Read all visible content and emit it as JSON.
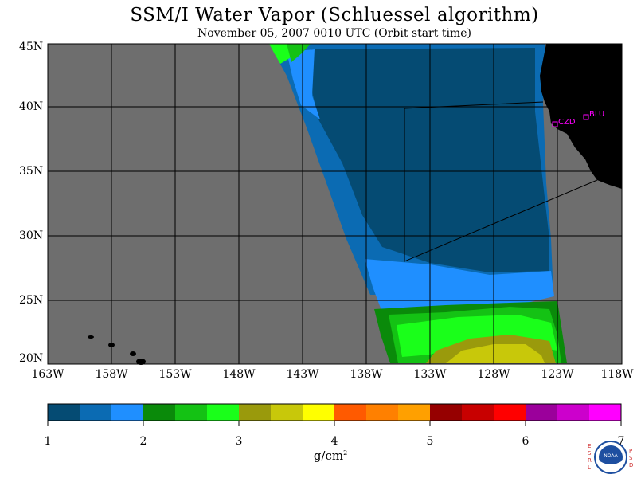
{
  "title": "SSM/I Water Vapor (Schluessel algorithm)",
  "subtitle": "November 05, 2007  0010 UTC  (Orbit start time)",
  "map": {
    "lat_labels": [
      "45N",
      "40N",
      "35N",
      "30N",
      "25N",
      "20N"
    ],
    "lon_labels": [
      "163W",
      "158W",
      "153W",
      "148W",
      "143W",
      "138W",
      "133W",
      "128W",
      "123W",
      "118W"
    ],
    "stations": [
      {
        "label": "CZD",
        "color": "#ff00ff"
      },
      {
        "label": "BLU",
        "color": "#ff00ff"
      }
    ],
    "colors": {
      "ocean_no_data": "#6e6e6e",
      "land": "#000000",
      "grid": "#000000"
    }
  },
  "colorbar": {
    "colors": [
      "#054b73",
      "#0b6bb3",
      "#1f8fff",
      "#0a8a0a",
      "#14c214",
      "#1aff1a",
      "#9a9a0c",
      "#c8c80a",
      "#ffff00",
      "#ff5a00",
      "#ff8000",
      "#ffa000",
      "#960000",
      "#c80000",
      "#ff0000",
      "#9b009b",
      "#cc00cc",
      "#ff00ff"
    ],
    "tick_labels": [
      "1",
      "2",
      "3",
      "4",
      "5",
      "6",
      "7"
    ],
    "units": "g/cm",
    "units_exponent": "2"
  },
  "logo": {
    "left_text": "ESRL",
    "right_text": "PSD",
    "center_text": "NOAA"
  }
}
